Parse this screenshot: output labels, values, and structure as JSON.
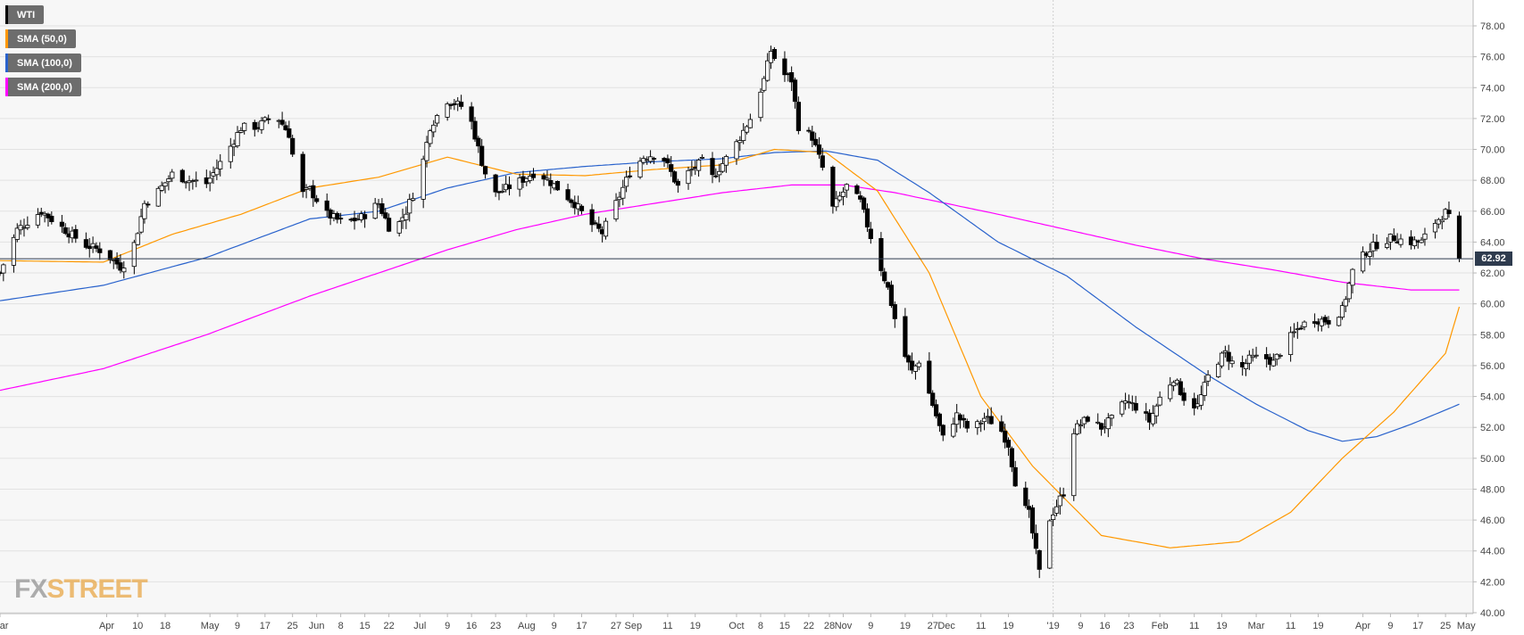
{
  "legend": [
    {
      "label": "WTI",
      "color": "#000000"
    },
    {
      "label": "SMA (50,0)",
      "color": "#ff9800"
    },
    {
      "label": "SMA (100,0)",
      "color": "#2962cc"
    },
    {
      "label": "SMA (200,0)",
      "color": "#ff00ff"
    }
  ],
  "logo": {
    "part1": "FX",
    "part2": "STREET"
  },
  "last_price": "62.92",
  "chart_data": {
    "type": "candlestick",
    "ylim": [
      40,
      78
    ],
    "y_ticks": [
      "78.00",
      "76.00",
      "74.00",
      "72.00",
      "70.00",
      "68.00",
      "66.00",
      "64.00",
      "62.00",
      "60.00",
      "58.00",
      "56.00",
      "54.00",
      "52.00",
      "50.00",
      "48.00",
      "46.00",
      "44.00",
      "42.00",
      "40.00"
    ],
    "x_ticks": [
      {
        "label": "Mar",
        "day": 0
      },
      {
        "label": "Apr",
        "day": 31
      },
      {
        "label": "10",
        "day": 40
      },
      {
        "label": "18",
        "day": 48
      },
      {
        "label": "May",
        "day": 61
      },
      {
        "label": "9",
        "day": 69
      },
      {
        "label": "17",
        "day": 77
      },
      {
        "label": "25",
        "day": 85
      },
      {
        "label": "Jun",
        "day": 92
      },
      {
        "label": "8",
        "day": 99
      },
      {
        "label": "15",
        "day": 106
      },
      {
        "label": "22",
        "day": 113
      },
      {
        "label": "Jul",
        "day": 122
      },
      {
        "label": "9",
        "day": 130
      },
      {
        "label": "16",
        "day": 137
      },
      {
        "label": "23",
        "day": 144
      },
      {
        "label": "Aug",
        "day": 153
      },
      {
        "label": "9",
        "day": 161
      },
      {
        "label": "17",
        "day": 169
      },
      {
        "label": "27",
        "day": 179
      },
      {
        "label": "Sep",
        "day": 184
      },
      {
        "label": "11",
        "day": 194
      },
      {
        "label": "19",
        "day": 202
      },
      {
        "label": "Oct",
        "day": 214
      },
      {
        "label": "8",
        "day": 221
      },
      {
        "label": "15",
        "day": 228
      },
      {
        "label": "22",
        "day": 235
      },
      {
        "label": "28",
        "day": 241
      },
      {
        "label": "Nov",
        "day": 245
      },
      {
        "label": "9",
        "day": 253
      },
      {
        "label": "19",
        "day": 263
      },
      {
        "label": "27",
        "day": 271
      },
      {
        "label": "Dec",
        "day": 275
      },
      {
        "label": "11",
        "day": 285
      },
      {
        "label": "19",
        "day": 293
      },
      {
        "label": "'19",
        "day": 306
      },
      {
        "label": "9",
        "day": 314
      },
      {
        "label": "16",
        "day": 321
      },
      {
        "label": "23",
        "day": 328
      },
      {
        "label": "Feb",
        "day": 337
      },
      {
        "label": "11",
        "day": 347
      },
      {
        "label": "19",
        "day": 355
      },
      {
        "label": "Mar",
        "day": 365
      },
      {
        "label": "11",
        "day": 375
      },
      {
        "label": "19",
        "day": 383
      },
      {
        "label": "Apr",
        "day": 396
      },
      {
        "label": "9",
        "day": 404
      },
      {
        "label": "17",
        "day": 412
      },
      {
        "label": "25",
        "day": 420
      },
      {
        "label": "May",
        "day": 426
      }
    ],
    "close_anchors": [
      [
        0,
        62.0
      ],
      [
        5,
        64.8
      ],
      [
        12,
        66.0
      ],
      [
        20,
        64.6
      ],
      [
        25,
        63.8
      ],
      [
        30,
        63.4
      ],
      [
        35,
        62.4
      ],
      [
        38,
        63.0
      ],
      [
        42,
        66.5
      ],
      [
        46,
        67.3
      ],
      [
        50,
        68.4
      ],
      [
        55,
        68.0
      ],
      [
        60,
        67.8
      ],
      [
        66,
        69.8
      ],
      [
        70,
        71.4
      ],
      [
        75,
        71.5
      ],
      [
        80,
        72.3
      ],
      [
        84,
        71.0
      ],
      [
        87,
        67.0
      ],
      [
        90,
        67.4
      ],
      [
        95,
        65.8
      ],
      [
        100,
        65.2
      ],
      [
        105,
        65.6
      ],
      [
        110,
        66.5
      ],
      [
        114,
        64.5
      ],
      [
        118,
        66.0
      ],
      [
        122,
        68.2
      ],
      [
        125,
        71.5
      ],
      [
        130,
        73.2
      ],
      [
        136,
        72.6
      ],
      [
        140,
        69.2
      ],
      [
        143,
        67.0
      ],
      [
        150,
        67.8
      ],
      [
        156,
        68.6
      ],
      [
        162,
        67.5
      ],
      [
        167,
        66.5
      ],
      [
        171,
        65.3
      ],
      [
        175,
        64.6
      ],
      [
        179,
        66.5
      ],
      [
        183,
        68.5
      ],
      [
        187,
        69.5
      ],
      [
        192,
        69.8
      ],
      [
        197,
        67.6
      ],
      [
        200,
        68.5
      ],
      [
        204,
        69.2
      ],
      [
        207,
        68.2
      ],
      [
        213,
        70.0
      ],
      [
        218,
        72.0
      ],
      [
        222,
        74.5
      ],
      [
        224,
        76.4
      ],
      [
        227,
        75.0
      ],
      [
        230,
        74.5
      ],
      [
        232,
        71.5
      ],
      [
        236,
        70.8
      ],
      [
        239,
        68.8
      ],
      [
        242,
        66.2
      ],
      [
        246,
        67.6
      ],
      [
        250,
        66.6
      ],
      [
        254,
        63.6
      ],
      [
        258,
        61.0
      ],
      [
        262,
        57.1
      ],
      [
        265,
        55.6
      ],
      [
        268,
        56.7
      ],
      [
        270,
        54.2
      ],
      [
        274,
        51.3
      ],
      [
        278,
        52.8
      ],
      [
        282,
        51.7
      ],
      [
        286,
        52.6
      ],
      [
        290,
        52.2
      ],
      [
        293,
        50.9
      ],
      [
        296,
        47.3
      ],
      [
        299,
        46.4
      ],
      [
        302,
        42.6
      ],
      [
        305,
        46.1
      ],
      [
        309,
        47.8
      ],
      [
        312,
        51.8
      ],
      [
        316,
        52.6
      ],
      [
        320,
        52.0
      ],
      [
        323,
        52.5
      ],
      [
        327,
        53.7
      ],
      [
        331,
        53.2
      ],
      [
        334,
        52.4
      ],
      [
        337,
        53.9
      ],
      [
        341,
        55.2
      ],
      [
        345,
        53.5
      ],
      [
        348,
        53.4
      ],
      [
        352,
        55.9
      ],
      [
        356,
        56.8
      ],
      [
        360,
        55.6
      ],
      [
        363,
        56.4
      ],
      [
        367,
        56.6
      ],
      [
        370,
        56.2
      ],
      [
        374,
        57.6
      ],
      [
        378,
        58.6
      ],
      [
        382,
        59.0
      ],
      [
        386,
        58.9
      ],
      [
        390,
        59.6
      ],
      [
        393,
        62.1
      ],
      [
        397,
        63.4
      ],
      [
        401,
        64.0
      ],
      [
        405,
        64.3
      ],
      [
        409,
        64.0
      ],
      [
        413,
        64.0
      ],
      [
        417,
        65.3
      ],
      [
        420,
        65.9
      ],
      [
        422,
        65.2
      ],
      [
        424,
        62.92
      ]
    ],
    "sma50": [
      [
        0,
        62.8
      ],
      [
        30,
        62.7
      ],
      [
        50,
        64.5
      ],
      [
        70,
        65.8
      ],
      [
        90,
        67.5
      ],
      [
        110,
        68.2
      ],
      [
        130,
        69.5
      ],
      [
        150,
        68.4
      ],
      [
        170,
        68.3
      ],
      [
        190,
        68.7
      ],
      [
        210,
        69.0
      ],
      [
        225,
        70.0
      ],
      [
        240,
        69.8
      ],
      [
        255,
        67.3
      ],
      [
        270,
        62.0
      ],
      [
        285,
        54.0
      ],
      [
        300,
        49.5
      ],
      [
        320,
        45.0
      ],
      [
        340,
        44.2
      ],
      [
        360,
        44.6
      ],
      [
        375,
        46.5
      ],
      [
        390,
        50.0
      ],
      [
        405,
        53.0
      ],
      [
        420,
        56.8
      ],
      [
        424,
        59.8
      ]
    ],
    "sma100": [
      [
        0,
        60.2
      ],
      [
        30,
        61.2
      ],
      [
        60,
        63.0
      ],
      [
        90,
        65.5
      ],
      [
        110,
        66.0
      ],
      [
        130,
        67.5
      ],
      [
        150,
        68.5
      ],
      [
        170,
        68.9
      ],
      [
        190,
        69.2
      ],
      [
        210,
        69.4
      ],
      [
        225,
        69.8
      ],
      [
        240,
        69.9
      ],
      [
        255,
        69.3
      ],
      [
        270,
        67.2
      ],
      [
        290,
        64.0
      ],
      [
        310,
        61.8
      ],
      [
        330,
        58.5
      ],
      [
        350,
        55.5
      ],
      [
        365,
        53.5
      ],
      [
        380,
        51.8
      ],
      [
        390,
        51.1
      ],
      [
        400,
        51.4
      ],
      [
        410,
        52.2
      ],
      [
        424,
        53.5
      ]
    ],
    "sma200": [
      [
        0,
        54.4
      ],
      [
        30,
        55.8
      ],
      [
        60,
        58.0
      ],
      [
        90,
        60.5
      ],
      [
        110,
        62.0
      ],
      [
        130,
        63.5
      ],
      [
        150,
        64.8
      ],
      [
        170,
        65.8
      ],
      [
        190,
        66.5
      ],
      [
        210,
        67.2
      ],
      [
        230,
        67.7
      ],
      [
        245,
        67.7
      ],
      [
        260,
        67.2
      ],
      [
        275,
        66.5
      ],
      [
        290,
        65.8
      ],
      [
        310,
        64.8
      ],
      [
        330,
        63.8
      ],
      [
        350,
        62.9
      ],
      [
        370,
        62.2
      ],
      [
        390,
        61.4
      ],
      [
        410,
        60.9
      ],
      [
        424,
        60.9
      ]
    ]
  }
}
